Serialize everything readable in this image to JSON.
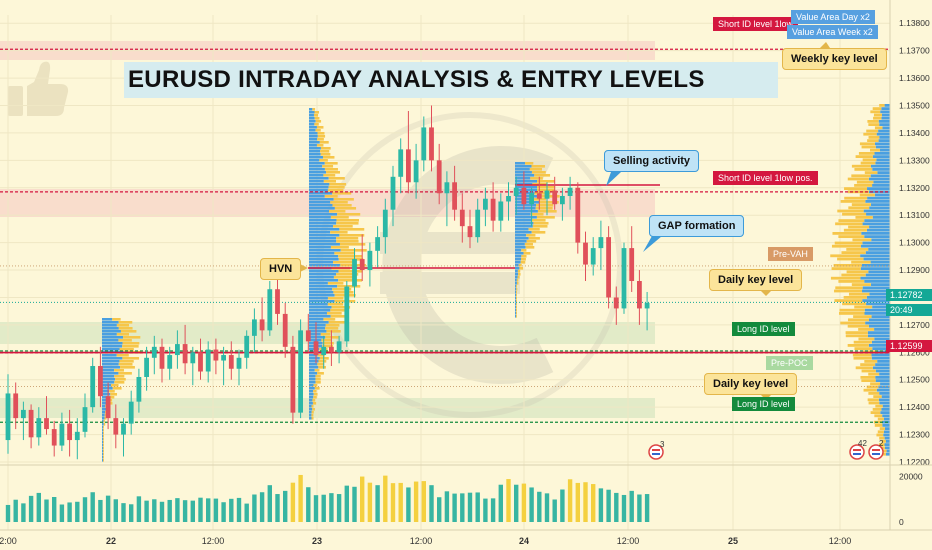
{
  "headline": "EURUSD INTRADAY ANALYSIS & ENTRY LEVELS",
  "colors": {
    "background": "#fdf7d8",
    "bull": "#2bb8a6",
    "bear": "#e0505a",
    "profile_blue": "#4a9fe0",
    "profile_yellow": "#f6c64a",
    "key_red": "#d4173f",
    "key_green": "#138a3c"
  },
  "icons": [
    "thumbs-up-icon",
    "euro-watermark-icon",
    "flag-icon"
  ],
  "annotations": {
    "selling_activity": "Selling activity",
    "gap_formation": "GAP formation",
    "hvn": "HVN",
    "weekly_key_level": "Weekly key level",
    "daily_key_level_upper": "Daily key level",
    "daily_key_level_lower": "Daily key level"
  },
  "level_tags": {
    "short_top": "Short ID level 1low",
    "value_area_day": "Value Area Day x2",
    "value_area_week": "Value Area Week x2",
    "short_mid": "Short ID level 1low pos.",
    "pre_vah": "Pre-VAH",
    "long_upper": "Long ID level",
    "pre_poc": "Pre-POC",
    "long_lower": "Long ID level"
  },
  "price_tags": {
    "current": "1.12782",
    "countdown": "20:49",
    "key": "1.12599"
  },
  "event_badges": {
    "b1": "3",
    "b2": "42",
    "b3": "2"
  },
  "chart_data": {
    "type": "candlestick",
    "symbol": "EURUSD",
    "y_axis_ticks": [
      "1.13800",
      "1.13700",
      "1.13600",
      "1.13500",
      "1.13400",
      "1.13300",
      "1.13200",
      "1.13100",
      "1.13000",
      "1.12900",
      "1.12800",
      "1.12700",
      "1.12600",
      "1.12500",
      "1.12400",
      "1.12300",
      "1.12200"
    ],
    "y_range": [
      1.122,
      1.1383
    ],
    "x_axis_ticks": [
      "2:00",
      "22",
      "12:00",
      "23",
      "12:00",
      "24",
      "12:00",
      "25",
      "12:00"
    ],
    "volume_axis_ticks": [
      "20000",
      "0"
    ],
    "key_levels": [
      1.13705,
      1.13185,
      1.12598,
      1.12345
    ],
    "current_price": 1.12782,
    "key_price": 1.12599,
    "ohlc": [
      [
        1.1228,
        1.1252,
        1.1223,
        1.1245
      ],
      [
        1.1245,
        1.1249,
        1.1232,
        1.1236
      ],
      [
        1.1236,
        1.1242,
        1.1228,
        1.1239
      ],
      [
        1.1239,
        1.1241,
        1.1225,
        1.1229
      ],
      [
        1.1229,
        1.124,
        1.1226,
        1.1236
      ],
      [
        1.1236,
        1.1244,
        1.123,
        1.1232
      ],
      [
        1.1232,
        1.1235,
        1.1222,
        1.1226
      ],
      [
        1.1226,
        1.1238,
        1.1224,
        1.1234
      ],
      [
        1.1234,
        1.1239,
        1.1222,
        1.1228
      ],
      [
        1.1228,
        1.1236,
        1.1221,
        1.1231
      ],
      [
        1.1231,
        1.1245,
        1.1229,
        1.124
      ],
      [
        1.124,
        1.1258,
        1.1238,
        1.1255
      ],
      [
        1.1255,
        1.1262,
        1.124,
        1.1244
      ],
      [
        1.1244,
        1.1249,
        1.1232,
        1.1236
      ],
      [
        1.1236,
        1.1241,
        1.1225,
        1.123
      ],
      [
        1.123,
        1.1236,
        1.1222,
        1.1234
      ],
      [
        1.1234,
        1.1246,
        1.123,
        1.1242
      ],
      [
        1.1242,
        1.1254,
        1.1238,
        1.1251
      ],
      [
        1.1251,
        1.1262,
        1.1246,
        1.1258
      ],
      [
        1.1258,
        1.1266,
        1.1252,
        1.1262
      ],
      [
        1.1262,
        1.1265,
        1.1249,
        1.1254
      ],
      [
        1.1254,
        1.1262,
        1.125,
        1.1259
      ],
      [
        1.1259,
        1.1268,
        1.1254,
        1.1263
      ],
      [
        1.1263,
        1.127,
        1.1252,
        1.1256
      ],
      [
        1.1256,
        1.1262,
        1.1248,
        1.126
      ],
      [
        1.126,
        1.1265,
        1.125,
        1.1253
      ],
      [
        1.1253,
        1.1264,
        1.1249,
        1.1261
      ],
      [
        1.1261,
        1.1265,
        1.1252,
        1.1257
      ],
      [
        1.1257,
        1.1262,
        1.1248,
        1.1259
      ],
      [
        1.1259,
        1.1264,
        1.125,
        1.1254
      ],
      [
        1.1254,
        1.1261,
        1.1248,
        1.1258
      ],
      [
        1.1258,
        1.1268,
        1.1254,
        1.1266
      ],
      [
        1.1266,
        1.1276,
        1.126,
        1.1272
      ],
      [
        1.1272,
        1.128,
        1.1264,
        1.1268
      ],
      [
        1.1268,
        1.1286,
        1.1266,
        1.1283
      ],
      [
        1.1283,
        1.1288,
        1.127,
        1.1274
      ],
      [
        1.1274,
        1.1278,
        1.1258,
        1.1262
      ],
      [
        1.1262,
        1.1266,
        1.1234,
        1.1238
      ],
      [
        1.1238,
        1.1272,
        1.1236,
        1.1268
      ],
      [
        1.1268,
        1.1274,
        1.126,
        1.1264
      ],
      [
        1.1264,
        1.1271,
        1.1256,
        1.1259
      ],
      [
        1.1259,
        1.1266,
        1.1254,
        1.1262
      ],
      [
        1.1262,
        1.1268,
        1.1255,
        1.126
      ],
      [
        1.126,
        1.1266,
        1.1256,
        1.1264
      ],
      [
        1.1264,
        1.1286,
        1.1262,
        1.1284
      ],
      [
        1.1284,
        1.1298,
        1.128,
        1.1294
      ],
      [
        1.1294,
        1.1303,
        1.1286,
        1.129
      ],
      [
        1.129,
        1.13,
        1.1284,
        1.1297
      ],
      [
        1.1297,
        1.1306,
        1.1291,
        1.1302
      ],
      [
        1.1302,
        1.1316,
        1.1296,
        1.1312
      ],
      [
        1.1312,
        1.1328,
        1.1306,
        1.1324
      ],
      [
        1.1324,
        1.1338,
        1.1318,
        1.1334
      ],
      [
        1.1334,
        1.1348,
        1.1318,
        1.1322
      ],
      [
        1.1322,
        1.1336,
        1.1316,
        1.133
      ],
      [
        1.133,
        1.1346,
        1.1326,
        1.1342
      ],
      [
        1.1342,
        1.135,
        1.1326,
        1.133
      ],
      [
        1.133,
        1.1336,
        1.1314,
        1.1318
      ],
      [
        1.1318,
        1.1326,
        1.1306,
        1.1322
      ],
      [
        1.1322,
        1.1328,
        1.1308,
        1.1312
      ],
      [
        1.1312,
        1.1318,
        1.13,
        1.1306
      ],
      [
        1.1306,
        1.1312,
        1.1298,
        1.1302
      ],
      [
        1.1302,
        1.1316,
        1.13,
        1.1312
      ],
      [
        1.1312,
        1.132,
        1.1306,
        1.1316
      ],
      [
        1.1316,
        1.1322,
        1.1304,
        1.1308
      ],
      [
        1.1308,
        1.1318,
        1.1304,
        1.1315
      ],
      [
        1.1315,
        1.1322,
        1.1308,
        1.1317
      ],
      [
        1.1317,
        1.1324,
        1.131,
        1.132
      ],
      [
        1.132,
        1.1326,
        1.1312,
        1.1314
      ],
      [
        1.1314,
        1.132,
        1.1306,
        1.1318
      ],
      [
        1.1318,
        1.1324,
        1.1312,
        1.1316
      ],
      [
        1.1316,
        1.1322,
        1.131,
        1.1319
      ],
      [
        1.1319,
        1.1324,
        1.1312,
        1.1314
      ],
      [
        1.1314,
        1.132,
        1.1308,
        1.1317
      ],
      [
        1.1317,
        1.1324,
        1.1312,
        1.132
      ],
      [
        1.132,
        1.1322,
        1.1296,
        1.13
      ],
      [
        1.13,
        1.1304,
        1.1286,
        1.1292
      ],
      [
        1.1292,
        1.1302,
        1.1288,
        1.1298
      ],
      [
        1.1298,
        1.1308,
        1.129,
        1.1302
      ],
      [
        1.1302,
        1.1306,
        1.1276,
        1.128
      ],
      [
        1.128,
        1.1284,
        1.127,
        1.1276
      ],
      [
        1.1276,
        1.13,
        1.1274,
        1.1298
      ],
      [
        1.1298,
        1.1306,
        1.1282,
        1.1286
      ],
      [
        1.1286,
        1.129,
        1.127,
        1.1276
      ],
      [
        1.1276,
        1.1282,
        1.1268,
        1.1278
      ]
    ],
    "volume": [
      7500,
      9800,
      8200,
      11500,
      12800,
      9900,
      11000,
      7700,
      8600,
      8900,
      10900,
      13100,
      9700,
      11600,
      10000,
      8300,
      7800,
      11300,
      9400,
      10000,
      8900,
      9700,
      10500,
      9600,
      9400,
      10700,
      10400,
      10300,
      8700,
      10200,
      10600,
      8100,
      12100,
      13100,
      16200,
      12300,
      13700,
      17300,
      20700,
      15300,
      11800,
      12000,
      12700,
      12300,
      16000,
      15500,
      20000,
      17300,
      16200,
      20400,
      17100,
      17200,
      15200,
      17800,
      18000,
      16200,
      10900,
      13500,
      12500,
      12600,
      12900,
      13000,
      10300,
      10400,
      16400,
      18900,
      16400,
      16900,
      15200,
      13300,
      12600,
      9900,
      14300,
      18800,
      17200,
      17500,
      16700,
      14800,
      14200,
      12800,
      11900,
      13700,
      12100,
      12300
    ]
  }
}
